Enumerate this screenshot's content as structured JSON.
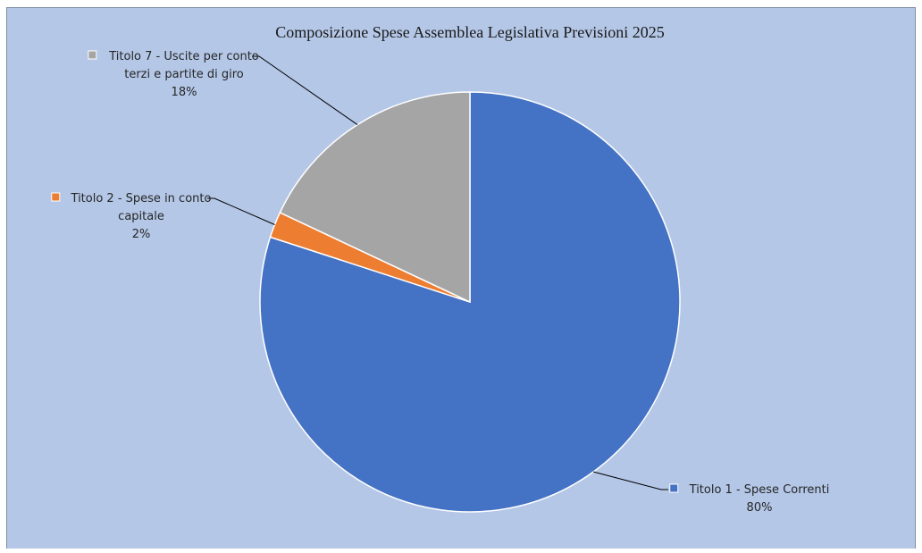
{
  "chart_data": {
    "type": "pie",
    "title": "Composizione  Spese Assemblea  Legislativa  Previsioni 2025",
    "slices": [
      {
        "name": "Titolo 1 - Spese Correnti",
        "value": 80,
        "color": "#4472c4",
        "label_lines": [
          "Titolo 1 - Spese Correnti",
          "80%"
        ]
      },
      {
        "name": "Titolo 2 - Spese in conto capitale",
        "value": 2,
        "color": "#ed7d31",
        "label_lines": [
          "Titolo 2 - Spese in conto",
          "capitale",
          "2%"
        ]
      },
      {
        "name": "Titolo 7 - Uscite per conto terzi e partite di giro",
        "value": 18,
        "color": "#a5a5a5",
        "label_lines": [
          "Titolo 7 - Uscite per conto",
          "terzi e partite di giro",
          "18%"
        ]
      }
    ],
    "legend": "none",
    "data_labels": "outside-with-leader-lines",
    "background_color": "#b4c7e7"
  }
}
